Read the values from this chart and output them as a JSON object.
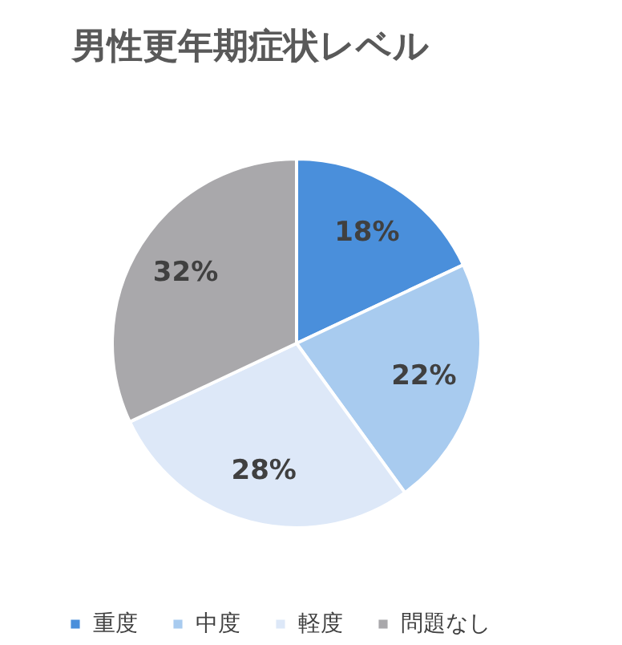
{
  "chart_data": {
    "type": "pie",
    "title": "男性更年期症状レベル",
    "categories": [
      "重度",
      "中度",
      "軽度",
      "問題なし"
    ],
    "values": [
      18,
      22,
      28,
      32
    ],
    "value_labels": [
      "18%",
      "22%",
      "28%",
      "32%"
    ],
    "colors": [
      "#4a8fdb",
      "#a8cbef",
      "#dde8f8",
      "#a9a8ab"
    ],
    "legend": "bottom"
  }
}
